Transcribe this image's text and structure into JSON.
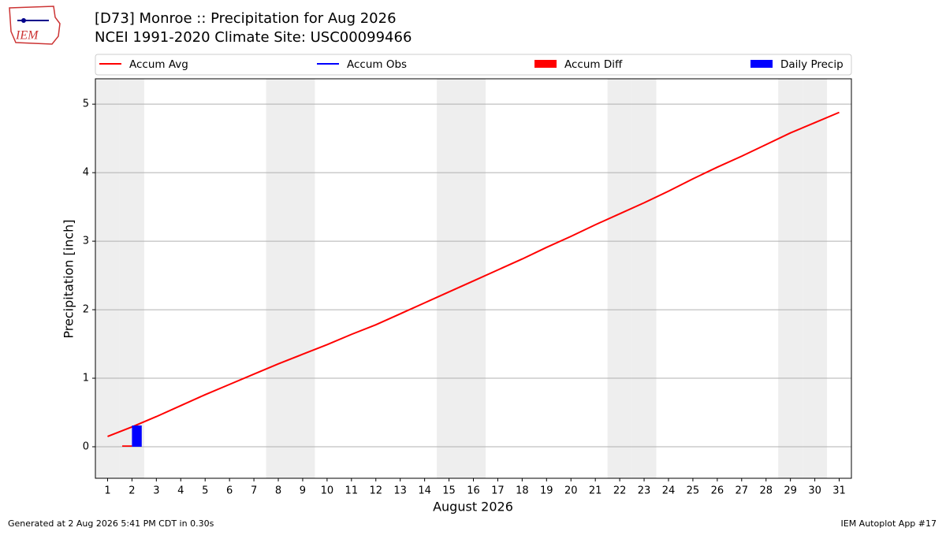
{
  "chart_data": {
    "type": "line",
    "title": "[D73] Monroe :: Precipitation for Aug 2026",
    "subtitle": "NCEI 1991-2020 Climate Site: USC00099466",
    "logo_text": "IEM",
    "ylabel": "Precipitation [inch]",
    "xlabel": "August 2026",
    "footer_left": "Generated at 2 Aug 2026 5:41 PM CDT in 0.30s",
    "footer_right": "IEM Autoplot App #17",
    "x": [
      1,
      2,
      3,
      4,
      5,
      6,
      7,
      8,
      9,
      10,
      11,
      12,
      13,
      14,
      15,
      16,
      17,
      18,
      19,
      20,
      21,
      22,
      23,
      24,
      25,
      26,
      27,
      28,
      29,
      30,
      31
    ],
    "xlim": [
      0.5,
      31.5
    ],
    "xticks": [
      1,
      2,
      3,
      4,
      5,
      6,
      7,
      8,
      9,
      10,
      11,
      12,
      13,
      14,
      15,
      16,
      17,
      18,
      19,
      20,
      21,
      22,
      23,
      24,
      25,
      26,
      27,
      28,
      29,
      30,
      31
    ],
    "ylim": [
      -0.46,
      5.37
    ],
    "yticks": [
      0,
      1,
      2,
      3,
      4,
      5
    ],
    "grid": true,
    "shaded_days": [
      1,
      2,
      8,
      9,
      15,
      16,
      22,
      23,
      29,
      30
    ],
    "series": [
      {
        "name": "Accum Avg",
        "type": "line",
        "color": "#ff0000",
        "values": [
          0.15,
          0.29,
          0.44,
          0.6,
          0.76,
          0.91,
          1.06,
          1.21,
          1.35,
          1.49,
          1.64,
          1.78,
          1.94,
          2.1,
          2.26,
          2.42,
          2.58,
          2.74,
          2.91,
          3.07,
          3.24,
          3.4,
          3.56,
          3.73,
          3.91,
          4.08,
          4.24,
          4.41,
          4.58,
          4.73,
          4.88
        ]
      },
      {
        "name": "Accum Obs",
        "type": "line",
        "color": "#0000ff",
        "values": [
          null,
          0.31,
          null,
          null,
          null,
          null,
          null,
          null,
          null,
          null,
          null,
          null,
          null,
          null,
          null,
          null,
          null,
          null,
          null,
          null,
          null,
          null,
          null,
          null,
          null,
          null,
          null,
          null,
          null,
          null,
          null
        ]
      },
      {
        "name": "Accum Diff",
        "type": "bar",
        "color": "#ff0000",
        "values": [
          null,
          0.02,
          null,
          null,
          null,
          null,
          null,
          null,
          null,
          null,
          null,
          null,
          null,
          null,
          null,
          null,
          null,
          null,
          null,
          null,
          null,
          null,
          null,
          null,
          null,
          null,
          null,
          null,
          null,
          null,
          null
        ]
      },
      {
        "name": "Daily Precip",
        "type": "bar",
        "color": "#0000ff",
        "values": [
          null,
          0.31,
          null,
          null,
          null,
          null,
          null,
          null,
          null,
          null,
          null,
          null,
          null,
          null,
          null,
          null,
          null,
          null,
          null,
          null,
          null,
          null,
          null,
          null,
          null,
          null,
          null,
          null,
          null,
          null,
          null
        ]
      }
    ]
  }
}
